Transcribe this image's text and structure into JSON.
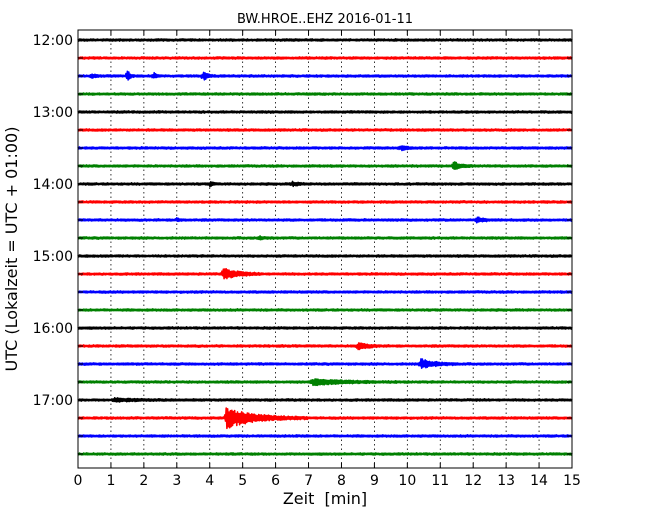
{
  "chart_data": {
    "type": "line",
    "title": "BW.HROE..EHZ 2016-01-11",
    "xlabel": "Zeit  [min]",
    "ylabel": "UTC (Lokalzeit = UTC + 01:00)",
    "xlim": [
      0,
      15
    ],
    "x_ticks": [
      0,
      1,
      2,
      3,
      4,
      5,
      6,
      7,
      8,
      9,
      10,
      11,
      12,
      13,
      14,
      15
    ],
    "x_tick_labels": [
      "0",
      "1",
      "2",
      "3",
      "4",
      "5",
      "6",
      "7",
      "8",
      "9",
      "10",
      "11",
      "12",
      "13",
      "14",
      "15"
    ],
    "y_tick_labels": [
      "12:00",
      "13:00",
      "14:00",
      "15:00",
      "16:00",
      "17:00"
    ],
    "grid": "vertical dotted lines at each minute",
    "trace_colors": [
      "#000000",
      "#ff0000",
      "#0000ff",
      "#008000"
    ],
    "traces": [
      {
        "start": "12:00",
        "events": []
      },
      {
        "start": "12:15",
        "events": []
      },
      {
        "start": "12:30",
        "events": [
          {
            "t": 0.4,
            "amp": 0.25,
            "dur": 0.4
          },
          {
            "t": 1.5,
            "amp": 0.75,
            "dur": 0.2
          },
          {
            "t": 2.3,
            "amp": 0.35,
            "dur": 0.2
          },
          {
            "t": 3.8,
            "amp": 0.5,
            "dur": 0.4
          }
        ]
      },
      {
        "start": "12:45",
        "events": []
      },
      {
        "start": "13:00",
        "events": []
      },
      {
        "start": "13:15",
        "events": []
      },
      {
        "start": "13:30",
        "events": [
          {
            "t": 9.8,
            "amp": 0.25,
            "dur": 0.5
          }
        ]
      },
      {
        "start": "13:45",
        "events": [
          {
            "t": 11.4,
            "amp": 0.45,
            "dur": 0.6
          }
        ]
      },
      {
        "start": "14:00",
        "events": [
          {
            "t": 4.0,
            "amp": 0.2,
            "dur": 0.3
          },
          {
            "t": 6.5,
            "amp": 0.2,
            "dur": 0.6
          }
        ]
      },
      {
        "start": "14:15",
        "events": []
      },
      {
        "start": "14:30",
        "events": [
          {
            "t": 3.0,
            "amp": 0.15,
            "dur": 0.3
          },
          {
            "t": 12.1,
            "amp": 0.3,
            "dur": 0.5
          }
        ]
      },
      {
        "start": "14:45",
        "events": [
          {
            "t": 5.5,
            "amp": 0.15,
            "dur": 0.5
          }
        ]
      },
      {
        "start": "15:00",
        "events": []
      },
      {
        "start": "15:15",
        "events": [
          {
            "t": 4.4,
            "amp": 0.65,
            "dur": 1.2
          }
        ]
      },
      {
        "start": "15:30",
        "events": []
      },
      {
        "start": "15:45",
        "events": []
      },
      {
        "start": "16:00",
        "events": []
      },
      {
        "start": "16:15",
        "events": [
          {
            "t": 8.5,
            "amp": 0.4,
            "dur": 0.8
          }
        ]
      },
      {
        "start": "16:30",
        "events": [
          {
            "t": 10.4,
            "amp": 0.55,
            "dur": 1.2
          }
        ]
      },
      {
        "start": "16:45",
        "events": [
          {
            "t": 7.1,
            "amp": 0.3,
            "dur": 3.0
          }
        ]
      },
      {
        "start": "17:00",
        "events": [
          {
            "t": 1.1,
            "amp": 0.15,
            "dur": 2.0
          }
        ]
      },
      {
        "start": "17:15",
        "events": [
          {
            "t": 4.5,
            "amp": 1.1,
            "dur": 2.5
          }
        ]
      },
      {
        "start": "17:30",
        "events": []
      },
      {
        "start": "17:45",
        "events": []
      }
    ]
  }
}
